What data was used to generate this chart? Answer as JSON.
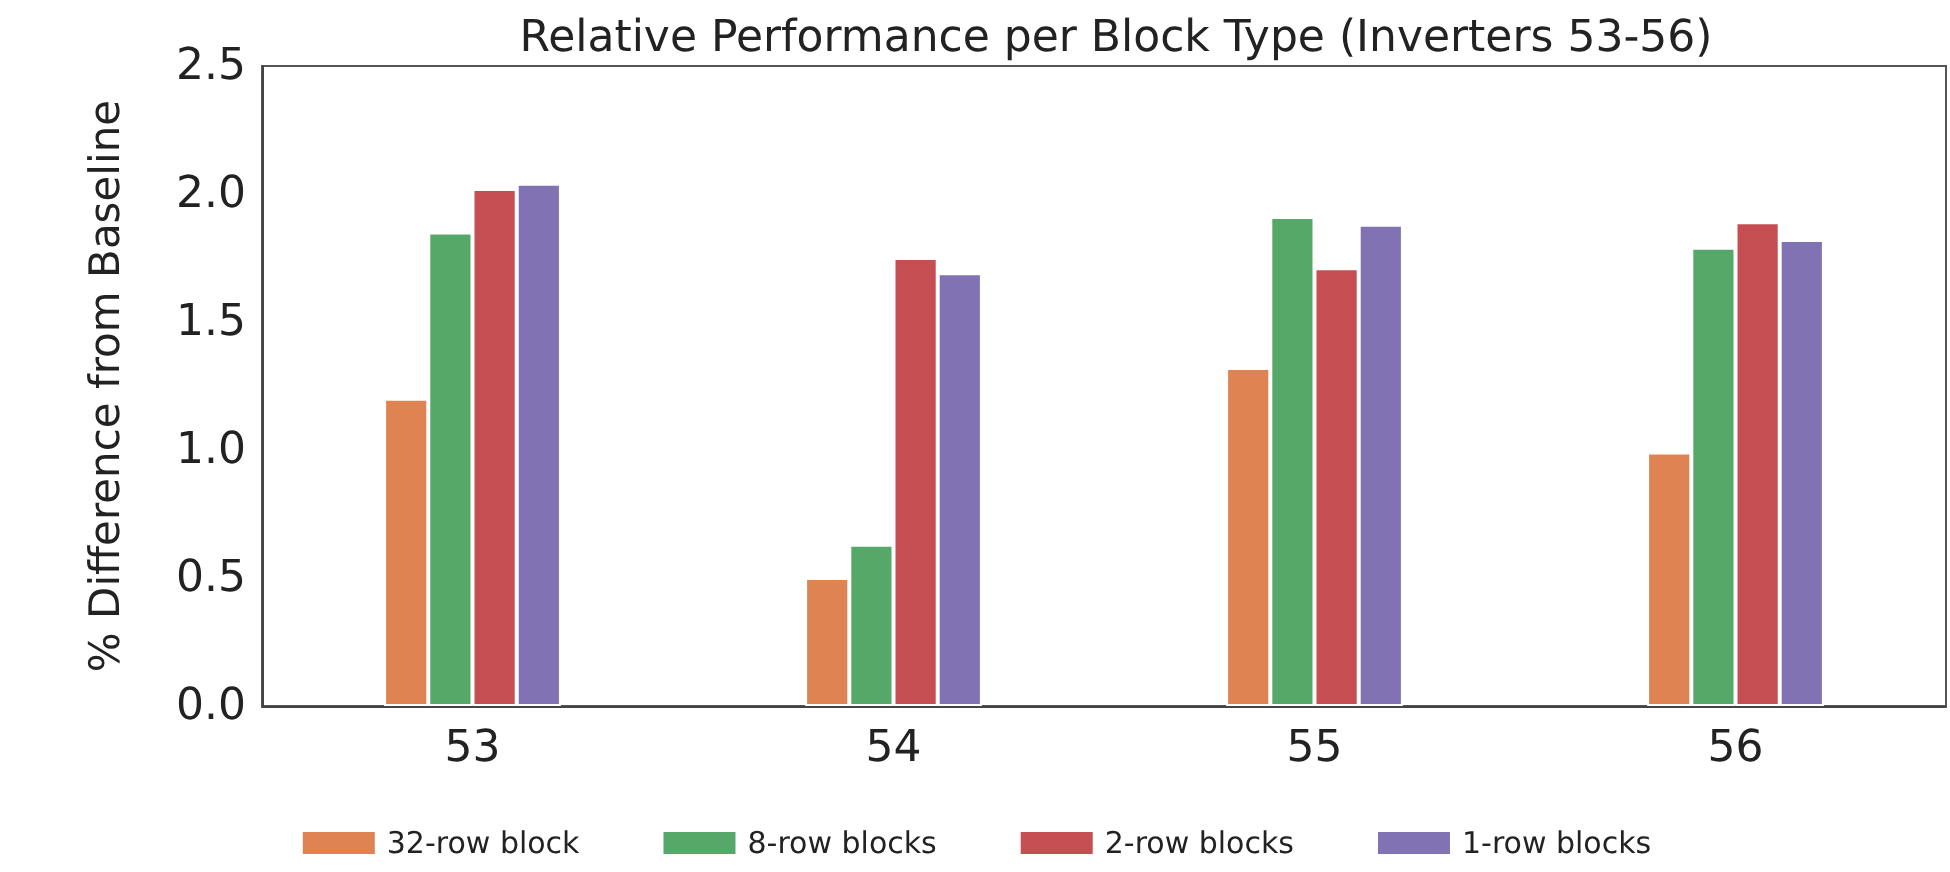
{
  "chart_data": {
    "type": "bar",
    "title": "Relative Performance per Block Type (Inverters 53-56)",
    "ylabel": "% Difference from Baseline",
    "categories": [
      "53",
      "54",
      "55",
      "56"
    ],
    "series": [
      {
        "name": "32-row block",
        "color": "#dd8452",
        "values": [
          1.2,
          0.5,
          1.32,
          0.99
        ]
      },
      {
        "name": "8-row blocks",
        "color": "#55a868",
        "values": [
          1.85,
          0.63,
          1.91,
          1.79
        ]
      },
      {
        "name": "2-row blocks",
        "color": "#c44e52",
        "values": [
          2.02,
          1.75,
          1.71,
          1.89
        ]
      },
      {
        "name": "1-row blocks",
        "color": "#8172b3",
        "values": [
          2.04,
          1.69,
          1.88,
          1.82
        ]
      }
    ],
    "ylim": [
      0,
      2.5
    ],
    "yticks": [
      {
        "value": 0,
        "label": "0.0"
      },
      0.5,
      {
        "value": 1,
        "label": "1.0"
      },
      1.5,
      {
        "value": 2,
        "label": "2.0"
      },
      2.5
    ],
    "grid": false,
    "legend": "bottom"
  }
}
